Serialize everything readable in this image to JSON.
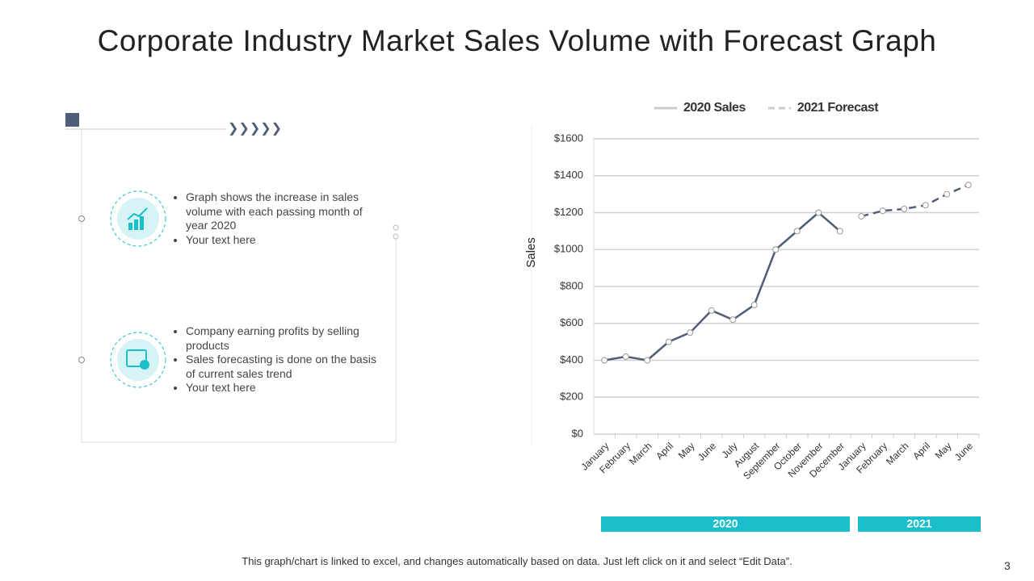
{
  "title": "Corporate Industry Market Sales Volume with Forecast Graph",
  "panel": {
    "blocks": [
      {
        "bullets": [
          "Graph shows the increase in sales volume with each passing month of year 2020",
          "Your text here"
        ]
      },
      {
        "bullets": [
          "Company earning profits by selling products",
          "Sales forecasting is done on the basis of current sales trend",
          "Your text here"
        ]
      }
    ]
  },
  "note": "This graph/chart is linked to excel, and changes automatically based on data. Just left click on it and select “Edit Data”.",
  "page_number": "3",
  "chart_data": {
    "type": "line",
    "y_label": "Sales",
    "categories": [
      "January",
      "February",
      "March",
      "April",
      "May",
      "June",
      "July",
      "August",
      "September",
      "October",
      "November",
      "December",
      "January",
      "February",
      "March",
      "April",
      "May",
      "June"
    ],
    "series": [
      {
        "name": "2020 Sales",
        "color": "#4f5e78",
        "dashed": false,
        "values": [
          400,
          420,
          400,
          500,
          550,
          670,
          620,
          700,
          1000,
          1100,
          1200,
          1100,
          null,
          null,
          null,
          null,
          null,
          null
        ]
      },
      {
        "name": "2021 Forecast",
        "color": "#4f5e78",
        "dashed": true,
        "values": [
          null,
          null,
          null,
          null,
          null,
          null,
          null,
          null,
          null,
          null,
          null,
          null,
          1180,
          1210,
          1220,
          1240,
          1300,
          1350
        ]
      }
    ],
    "groups": [
      "2020",
      "2021"
    ],
    "group_color": "#1bbfcc",
    "ylim": [
      0,
      1600
    ],
    "yticks": [
      {
        "value": 0,
        "label": "$0"
      },
      {
        "value": 200,
        "label": "$200"
      },
      {
        "value": 400,
        "label": "$400"
      },
      {
        "value": 600,
        "label": "$600"
      },
      {
        "value": 800,
        "label": "$800"
      },
      {
        "value": 1000,
        "label": "$1000"
      },
      {
        "value": 1200,
        "label": "$1200"
      },
      {
        "value": 1400,
        "label": "$1400"
      },
      {
        "value": 1600,
        "label": "$1600"
      }
    ],
    "grid": true
  }
}
